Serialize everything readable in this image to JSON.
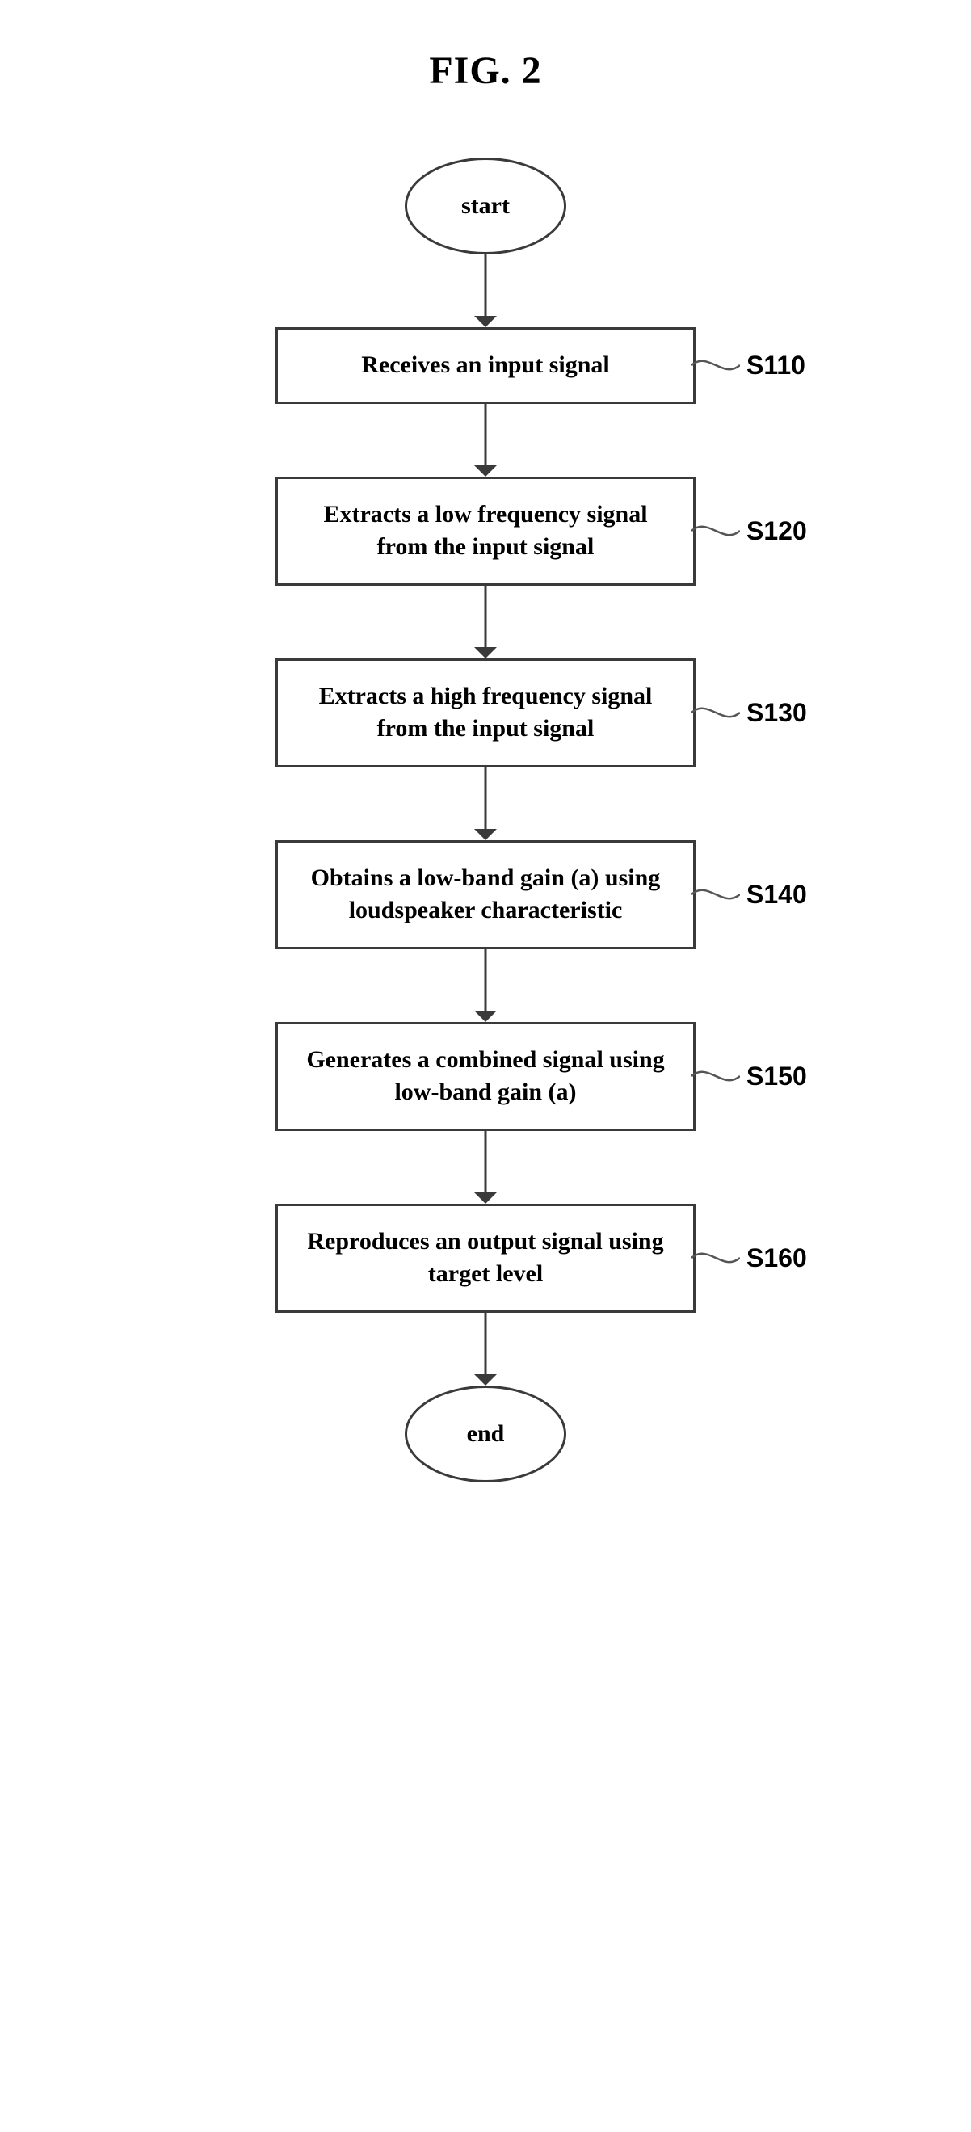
{
  "figure_title": "FIG. 2",
  "terminals": {
    "start": "start",
    "end": "end"
  },
  "steps": [
    {
      "text": "Receives an input signal",
      "label": "S110"
    },
    {
      "text": "Extracts a low frequency signal from the input signal",
      "label": "S120"
    },
    {
      "text": "Extracts a high frequency signal from the input signal",
      "label": "S130"
    },
    {
      "text": "Obtains a low-band gain (a) using loudspeaker characteristic",
      "label": "S140"
    },
    {
      "text": "Generates a combined signal using low-band gain (a)",
      "label": "S150"
    },
    {
      "text": "Reproduces an output signal using target level",
      "label": "S160"
    }
  ],
  "style": {
    "arrow_length": 90,
    "arrow_head_size": 14,
    "arrow_stroke": "#3a3a3a",
    "arrow_stroke_width": 3,
    "connector_curve_width": 60,
    "connector_stroke": "#555555",
    "connector_stroke_width": 2.5,
    "box_border": "#3a3a3a",
    "terminal_border": "#3a3a3a",
    "background": "#ffffff"
  }
}
